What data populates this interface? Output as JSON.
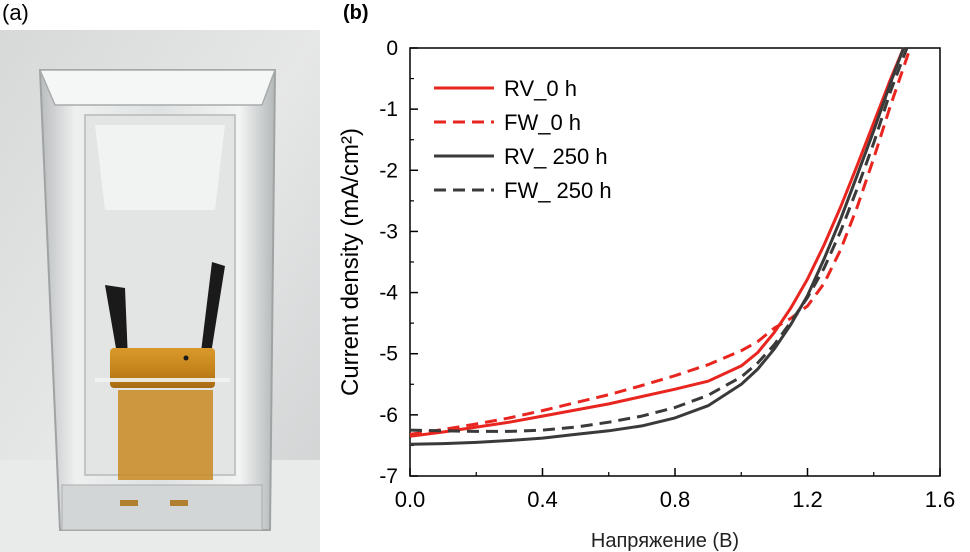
{
  "panels": {
    "a": "(a)",
    "b": "(b)"
  },
  "photo": {
    "description": "glass-cuvette-with-sample-photo"
  },
  "chart_data": {
    "type": "line",
    "xlabel": "Напряжение (В)",
    "ylabel": "Current density (mA/cm²)",
    "xlim": [
      0.0,
      1.6
    ],
    "ylim": [
      -7,
      0
    ],
    "xticks": [
      "0.0",
      "0.4",
      "0.8",
      "1.2",
      "1.6"
    ],
    "yticks": [
      "0",
      "-1",
      "-2",
      "-3",
      "-4",
      "-5",
      "-6",
      "-7"
    ],
    "grid": false,
    "legend_position": "top-left",
    "series": [
      {
        "name": "RV_0 h",
        "color": "#e8251f",
        "dash": "solid",
        "x": [
          0.0,
          0.1,
          0.2,
          0.3,
          0.4,
          0.5,
          0.6,
          0.7,
          0.8,
          0.9,
          1.0,
          1.05,
          1.1,
          1.15,
          1.2,
          1.25,
          1.3,
          1.35,
          1.4,
          1.45,
          1.49
        ],
        "y": [
          -6.35,
          -6.28,
          -6.2,
          -6.12,
          -6.02,
          -5.92,
          -5.82,
          -5.7,
          -5.58,
          -5.45,
          -5.2,
          -4.98,
          -4.65,
          -4.25,
          -3.78,
          -3.22,
          -2.6,
          -1.92,
          -1.22,
          -0.52,
          0.0
        ]
      },
      {
        "name": "FW_0 h",
        "color": "#e8251f",
        "dash": "dashed",
        "x": [
          0.0,
          0.1,
          0.2,
          0.3,
          0.4,
          0.5,
          0.6,
          0.7,
          0.8,
          0.9,
          1.0,
          1.05,
          1.1,
          1.15,
          1.2,
          1.25,
          1.3,
          1.35,
          1.4,
          1.45,
          1.51
        ],
        "y": [
          -6.32,
          -6.24,
          -6.15,
          -6.05,
          -5.93,
          -5.8,
          -5.67,
          -5.52,
          -5.36,
          -5.18,
          -4.95,
          -4.8,
          -4.58,
          -4.42,
          -4.22,
          -3.85,
          -3.3,
          -2.6,
          -1.8,
          -0.95,
          0.0
        ]
      },
      {
        "name": "RV_ 250 h",
        "color": "#3a3a3a",
        "dash": "solid",
        "x": [
          0.0,
          0.1,
          0.2,
          0.3,
          0.4,
          0.5,
          0.6,
          0.7,
          0.8,
          0.9,
          1.0,
          1.05,
          1.1,
          1.15,
          1.2,
          1.25,
          1.3,
          1.35,
          1.4,
          1.45,
          1.49
        ],
        "y": [
          -6.48,
          -6.47,
          -6.45,
          -6.42,
          -6.38,
          -6.32,
          -6.26,
          -6.18,
          -6.05,
          -5.85,
          -5.5,
          -5.25,
          -4.92,
          -4.52,
          -4.05,
          -3.45,
          -2.8,
          -2.08,
          -1.35,
          -0.58,
          0.0
        ]
      },
      {
        "name": "FW_ 250 h",
        "color": "#3a3a3a",
        "dash": "dashed",
        "x": [
          0.0,
          0.1,
          0.2,
          0.3,
          0.4,
          0.5,
          0.6,
          0.7,
          0.8,
          0.9,
          1.0,
          1.05,
          1.1,
          1.15,
          1.2,
          1.25,
          1.3,
          1.35,
          1.4,
          1.45,
          1.5
        ],
        "y": [
          -6.25,
          -6.26,
          -6.27,
          -6.27,
          -6.25,
          -6.2,
          -6.12,
          -6.02,
          -5.88,
          -5.68,
          -5.38,
          -5.15,
          -4.85,
          -4.48,
          -4.08,
          -3.6,
          -3.0,
          -2.3,
          -1.55,
          -0.72,
          0.0
        ]
      }
    ]
  }
}
